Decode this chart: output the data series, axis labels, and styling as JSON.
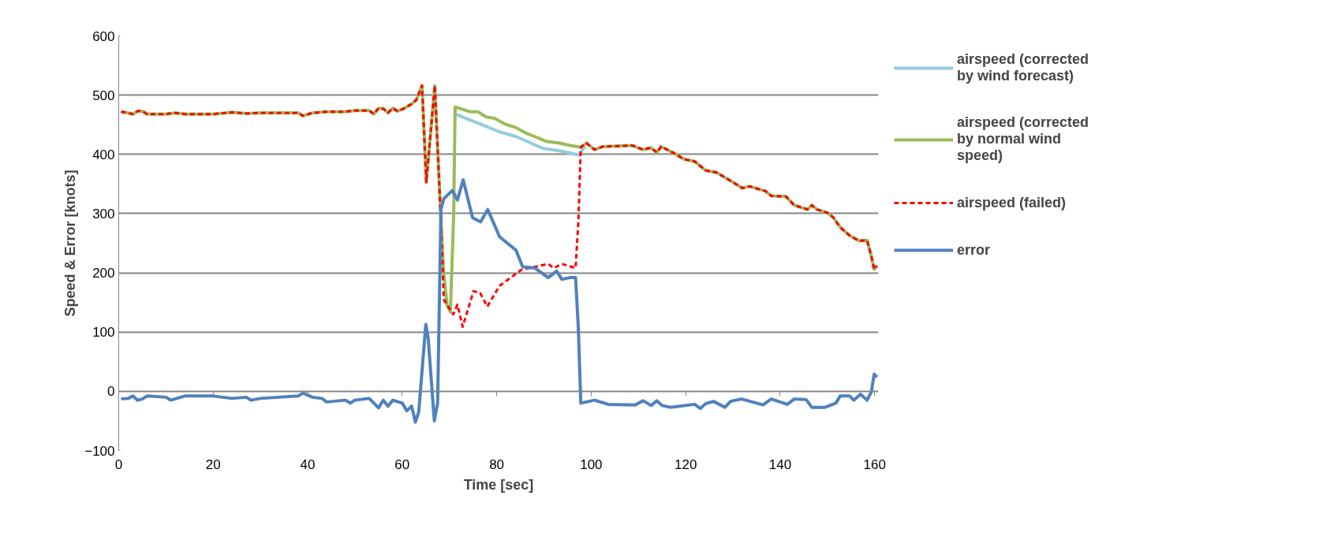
{
  "chart_data": {
    "type": "line",
    "xlabel": "Time [sec]",
    "ylabel": "Speed & Error [knots]",
    "xlim": [
      0,
      160.8
    ],
    "xticks": [
      0,
      20,
      40,
      60,
      80,
      100,
      120,
      140,
      160
    ],
    "ylim": [
      -100,
      600
    ],
    "yticks": [
      -100,
      0,
      100,
      200,
      300,
      400,
      500,
      600
    ],
    "grid": "y",
    "legend": "right",
    "marker": "none",
    "series": [
      {
        "name": "airspeed (corrected by wind forecast)",
        "color": "#93cddd",
        "line_style": "solid",
        "x": [
          71.2,
          74.3,
          77.8,
          80.6,
          84.1,
          86.4,
          89.8,
          93.3,
          97.3,
          98.7
        ],
        "values": [
          468,
          458,
          447,
          438,
          430,
          422,
          410,
          406,
          399,
          413
        ]
      },
      {
        "name": "airspeed (corrected by normal wind speed)",
        "color": "#9bbb59",
        "line_style": "solid",
        "x": [
          0.5,
          2,
          3,
          4,
          5,
          6,
          10,
          12,
          14,
          20,
          24,
          27,
          30,
          38,
          39,
          41,
          44,
          48,
          50,
          53,
          54,
          55,
          56,
          57,
          58,
          59,
          60,
          62,
          63,
          64.2,
          65.1,
          66.9,
          68.2,
          68.8,
          69.5,
          70.2,
          70.9,
          71.2,
          74.3,
          76.0,
          77.8,
          79.5,
          81.8,
          84.1,
          86.4,
          88.7,
          90.4,
          93.3,
          95.5,
          97.8,
          99,
          100.7,
          102.4,
          108.7,
          111,
          112.7,
          113.9,
          114.8,
          117.3,
          119.6,
          121.9,
          124.2,
          126.6,
          130,
          132,
          133.5,
          136.9,
          138.1,
          141.2,
          143,
          145.8,
          146.7,
          147.8,
          150.1,
          151.3,
          152.7,
          154.7,
          156.7,
          158.4,
          159.3,
          159.9,
          160.5
        ],
        "values": [
          472,
          470,
          468,
          473,
          473,
          468,
          468,
          470,
          468,
          468,
          471,
          469,
          470,
          470,
          465,
          470,
          472,
          472,
          474,
          474,
          468,
          478,
          477,
          470,
          478,
          473,
          476,
          485,
          492,
          516,
          353,
          516,
          288,
          200,
          145,
          134,
          300,
          480,
          472,
          472,
          463,
          461,
          451,
          445,
          435,
          428,
          422,
          419,
          415,
          412,
          419,
          408,
          413,
          415,
          408,
          411,
          403,
          413,
          403,
          392,
          388,
          373,
          369,
          353,
          343,
          346,
          338,
          330,
          329,
          314,
          307,
          314,
          307,
          301,
          293,
          277,
          263,
          254,
          255,
          228,
          206,
          212
        ]
      },
      {
        "name": "airspeed (failed)",
        "color": "#ff0000",
        "line_style": "dashed",
        "x": [
          0.5,
          2,
          3,
          4,
          5,
          6,
          10,
          12,
          14,
          20,
          24,
          27,
          30,
          38,
          39,
          41,
          44,
          48,
          50,
          53,
          54,
          55,
          56,
          57,
          58,
          59,
          60,
          62,
          63,
          64.2,
          65.1,
          66.9,
          68.2,
          68.8,
          70.8,
          71.7,
          72.8,
          75.1,
          76.5,
          78,
          80.6,
          85.2,
          90.9,
          92.1,
          93.8,
          96.7,
          97.3,
          97.8,
          99,
          100.7,
          102.4,
          108.7,
          111,
          112.7,
          113.9,
          114.8,
          117.3,
          119.6,
          121.9,
          124.2,
          126.6,
          130,
          132,
          133.5,
          136.9,
          138.1,
          141.2,
          143,
          145.8,
          146.7,
          147.8,
          150.1,
          151.3,
          152.7,
          154.7,
          156.7,
          158.4,
          159.3,
          159.9,
          160.5
        ],
        "values": [
          472,
          470,
          468,
          473,
          473,
          468,
          468,
          470,
          468,
          468,
          471,
          469,
          470,
          470,
          465,
          470,
          472,
          472,
          474,
          474,
          468,
          478,
          477,
          470,
          478,
          473,
          476,
          485,
          492,
          516,
          353,
          516,
          288,
          155,
          130,
          146,
          109,
          169,
          166,
          143,
          178,
          205,
          215,
          208,
          215,
          208,
          288,
          412,
          419,
          408,
          413,
          415,
          408,
          411,
          403,
          413,
          403,
          392,
          388,
          373,
          369,
          353,
          343,
          346,
          338,
          330,
          329,
          314,
          307,
          314,
          307,
          301,
          293,
          277,
          263,
          254,
          255,
          228,
          206,
          212
        ]
      },
      {
        "name": "error",
        "color": "#4f81bd",
        "line_style": "solid",
        "x": [
          0.5,
          2,
          3,
          4,
          5,
          6,
          10,
          11,
          14,
          20,
          24,
          27,
          28,
          30,
          38,
          39,
          41,
          43,
          44,
          48,
          49,
          50,
          53,
          55,
          56,
          57,
          58,
          60,
          61,
          62,
          62.8,
          63.5,
          65,
          65.5,
          66.8,
          67.5,
          68.2,
          68.8,
          70.6,
          71.7,
          72.9,
          74.9,
          76.6,
          78.1,
          80.6,
          84.1,
          85.5,
          88.1,
          90.9,
          92.7,
          93.8,
          95.5,
          96.7,
          97.3,
          97.8,
          100.7,
          103.6,
          109.3,
          111,
          112.7,
          113.9,
          115,
          116.8,
          121.9,
          123.1,
          124.2,
          125.9,
          128.3,
          129.5,
          131.8,
          136.4,
          138.1,
          141.5,
          143,
          145.5,
          146.7,
          149.5,
          151.8,
          152.7,
          154.7,
          155.6,
          157,
          158.4,
          159.3,
          159.9,
          160.5
        ],
        "values": [
          -13,
          -12,
          -8,
          -15,
          -13,
          -8,
          -10,
          -15,
          -8,
          -8,
          -12,
          -10,
          -15,
          -12,
          -8,
          -3,
          -10,
          -12,
          -18,
          -15,
          -20,
          -15,
          -12,
          -28,
          -15,
          -25,
          -15,
          -20,
          -33,
          -25,
          -52,
          -35,
          113,
          90,
          -50,
          -20,
          307,
          325,
          339,
          323,
          357,
          293,
          286,
          307,
          261,
          238,
          210,
          208,
          192,
          203,
          189,
          192,
          192,
          104,
          -20,
          -15,
          -22,
          -23,
          -16,
          -24,
          -16,
          -24,
          -27,
          -22,
          -29,
          -21,
          -17,
          -27,
          -17,
          -13,
          -23,
          -13,
          -22,
          -13,
          -14,
          -27,
          -27,
          -20,
          -8,
          -8,
          -15,
          -5,
          -15,
          -1,
          29,
          24
        ]
      }
    ]
  }
}
